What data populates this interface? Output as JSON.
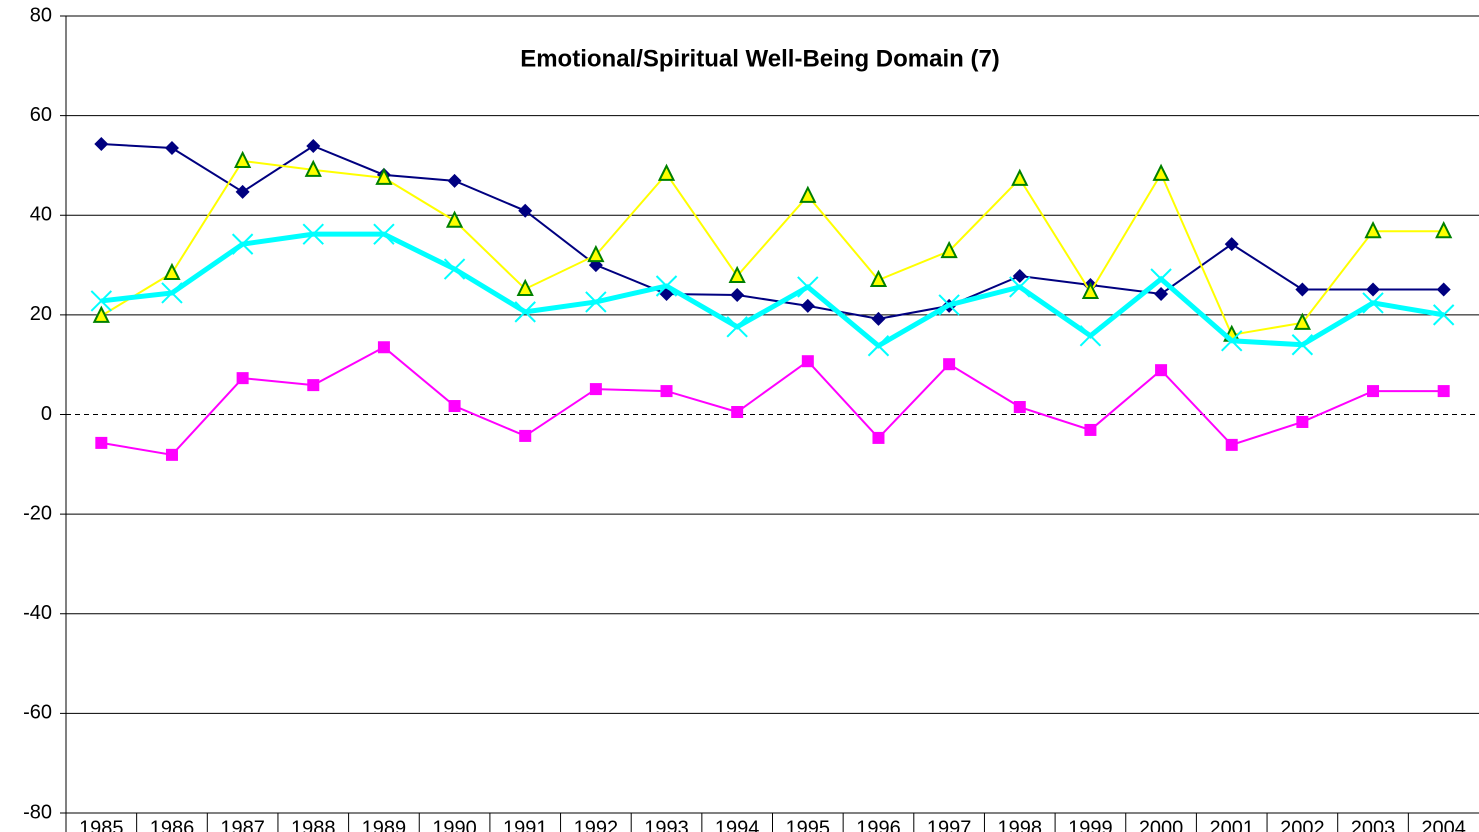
{
  "chart_data": {
    "type": "line",
    "title": "Emotional/Spiritual Well-Being Domain (7)",
    "categories": [
      "1985",
      "1986",
      "1987",
      "1988",
      "1989",
      "1990",
      "1991",
      "1992",
      "1993",
      "1994",
      "1995",
      "1996",
      "1997",
      "1998",
      "1999",
      "2000",
      "2001",
      "2002",
      "2003",
      "2004"
    ],
    "series": [
      {
        "color": "#000080",
        "marker": "diamond",
        "width": 2,
        "values": [
          54.3,
          53.5,
          44.7,
          53.9,
          48.1,
          46.9,
          40.9,
          30.0,
          24.2,
          24.0,
          21.8,
          19.2,
          21.8,
          27.8,
          26.0,
          24.2,
          34.2,
          25.1,
          25.1,
          25.1
        ]
      },
      {
        "color": "#ff00ff",
        "marker": "square",
        "width": 2,
        "values": [
          -5.7,
          -8.1,
          7.3,
          5.9,
          13.5,
          1.7,
          -4.3,
          5.1,
          4.7,
          0.5,
          10.7,
          -4.7,
          10.1,
          1.5,
          -3.1,
          8.9,
          -6.1,
          -1.5,
          4.7,
          4.7
        ]
      },
      {
        "color": "#ffff00",
        "marker": "triangle",
        "width": 2,
        "values": [
          19.8,
          28.4,
          50.9,
          49.1,
          47.5,
          38.9,
          25.2,
          32.0,
          48.3,
          27.8,
          43.9,
          27.0,
          32.8,
          47.3,
          24.6,
          48.3,
          16.0,
          18.4,
          36.8,
          36.8
        ]
      },
      {
        "color": "#00ffff",
        "marker": "x",
        "width": 5,
        "values": [
          22.8,
          24.4,
          34.2,
          36.2,
          36.2,
          29.2,
          20.6,
          22.6,
          25.8,
          17.6,
          25.6,
          13.8,
          22.0,
          25.6,
          15.8,
          27.2,
          14.8,
          14.0,
          22.4,
          20.0
        ]
      }
    ],
    "ylim": [
      -80,
      80
    ],
    "yticks": [
      -80,
      -60,
      -40,
      -20,
      0,
      20,
      40,
      60,
      80
    ],
    "grid": true
  }
}
